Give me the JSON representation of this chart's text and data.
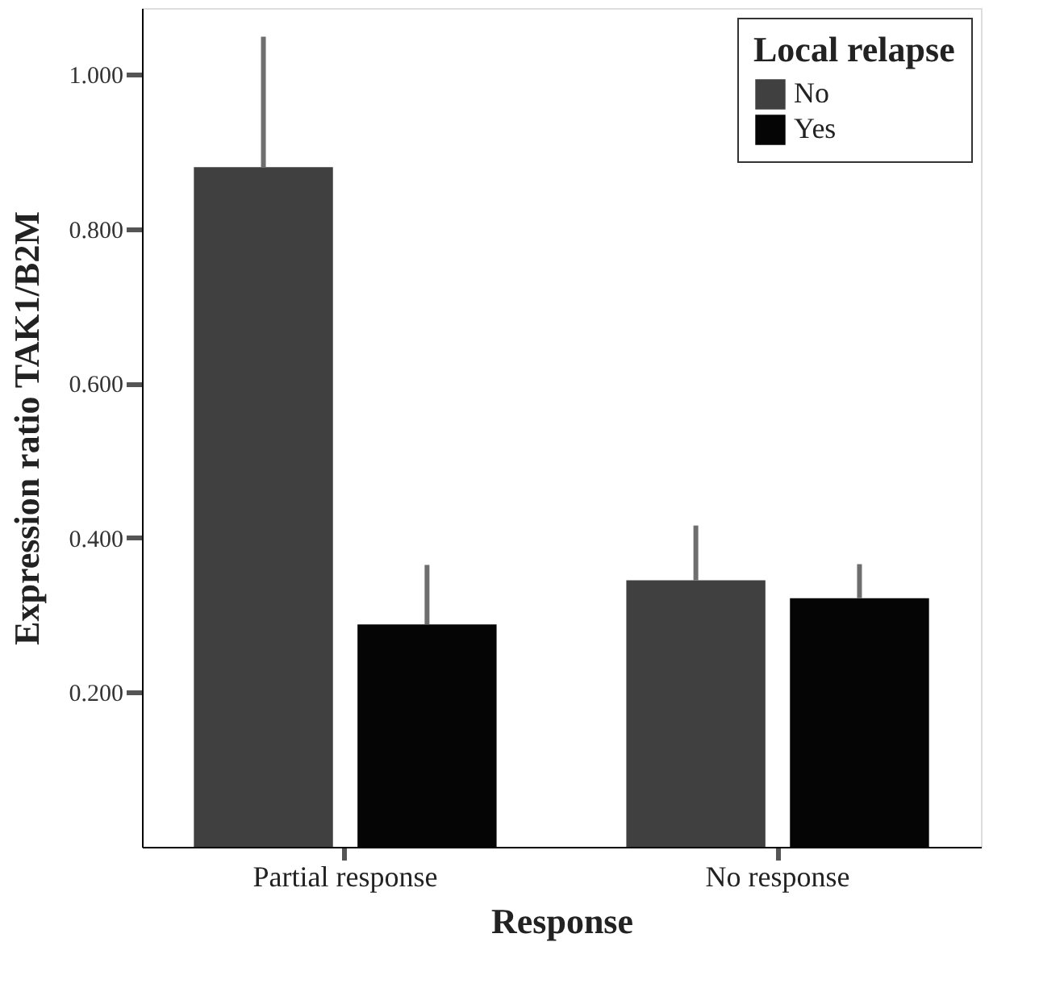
{
  "chart_data": {
    "type": "bar",
    "xlabel": "Response",
    "ylabel": "Expression ratio  TAK1/B2M",
    "legend_title": "Local relapse",
    "categories": [
      "Partial response",
      "No response"
    ],
    "series": [
      {
        "name": "No",
        "color": "#404040",
        "values": [
          0.88,
          0.345
        ],
        "errors": [
          [
            0.88,
            1.049
          ],
          [
            0.345,
            0.416
          ]
        ]
      },
      {
        "name": "Yes",
        "color": "#050505",
        "values": [
          0.288,
          0.322
        ],
        "errors": [
          [
            0.288,
            0.365
          ],
          [
            0.322,
            0.366
          ]
        ]
      }
    ],
    "ylim": [
      0,
      1.086
    ],
    "yticks": [
      {
        "value": 0.2,
        "label": "0.200"
      },
      {
        "value": 0.4,
        "label": "0.400"
      },
      {
        "value": 0.6,
        "label": "0.600"
      },
      {
        "value": 0.8,
        "label": "0.800"
      },
      {
        "value": 1.0,
        "label": "1.000"
      }
    ],
    "grid": false,
    "legend": "top right"
  }
}
